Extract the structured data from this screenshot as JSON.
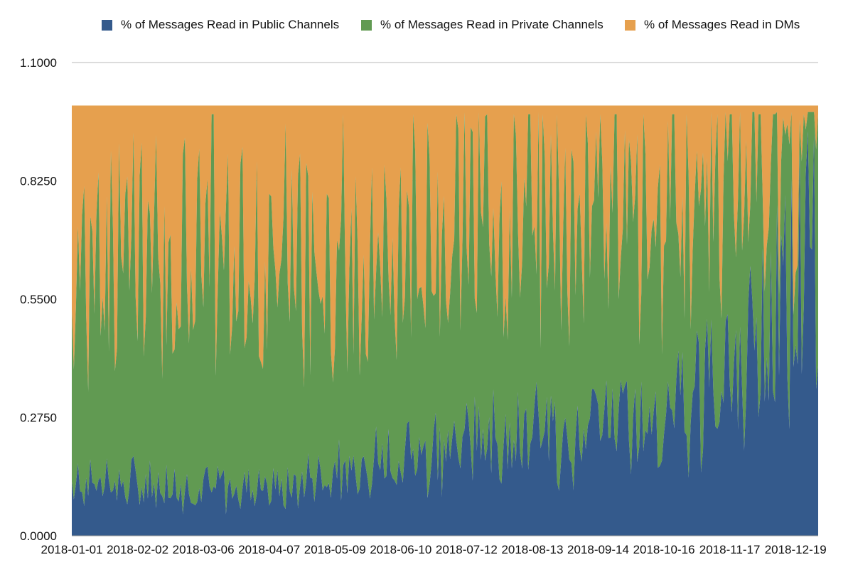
{
  "chart_data": {
    "type": "area",
    "stacked": true,
    "title": "",
    "xlabel": "",
    "ylabel": "",
    "ylim": [
      0,
      1.1
    ],
    "y_ticks": [
      "0.0000",
      "0.2750",
      "0.5500",
      "0.8250",
      "1.1000"
    ],
    "y_tick_values": [
      0,
      0.275,
      0.55,
      0.825,
      1.1
    ],
    "x_tick_labels": [
      "2018-01-01",
      "2018-02-02",
      "2018-03-06",
      "2018-04-07",
      "2018-05-09",
      "2018-06-10",
      "2018-07-12",
      "2018-08-13",
      "2018-09-14",
      "2018-10-16",
      "2018-11-17",
      "2018-12-19"
    ],
    "x_range_days": [
      0,
      363
    ],
    "x_tick_days": [
      0,
      32,
      64,
      96,
      128,
      160,
      192,
      224,
      256,
      288,
      320,
      352
    ],
    "legend_position": "top",
    "series": [
      {
        "name": "% of Messages Read in Public Channels",
        "color": "#345a8c",
        "values_at_ticks": [
          0.12,
          0.13,
          0.11,
          0.11,
          0.15,
          0.2,
          0.22,
          0.24,
          0.26,
          0.28,
          0.38,
          0.6
        ]
      },
      {
        "name": "% of Messages Read in Private Channels",
        "color": "#619a52",
        "values_at_ticks": [
          0.38,
          0.38,
          0.4,
          0.38,
          0.34,
          0.3,
          0.38,
          0.36,
          0.35,
          0.32,
          0.27,
          0.12
        ]
      },
      {
        "name": "% of Messages Read in DMs",
        "color": "#e6a04e",
        "values_at_ticks": [
          0.5,
          0.49,
          0.49,
          0.51,
          0.51,
          0.5,
          0.4,
          0.4,
          0.39,
          0.4,
          0.35,
          0.28
        ]
      }
    ],
    "total": 1.0
  }
}
